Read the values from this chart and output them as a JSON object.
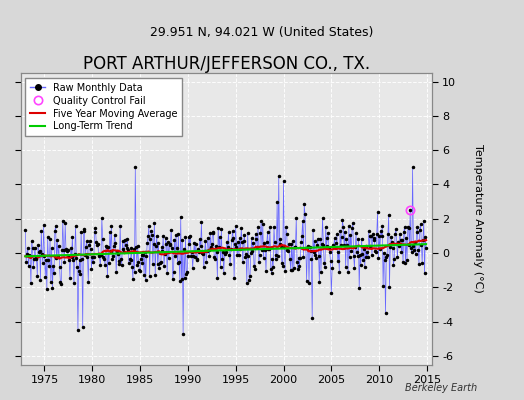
{
  "title": "PORT ARTHUR/JEFFERSON CO., TX.",
  "subtitle": "29.951 N, 94.021 W (United States)",
  "ylabel": "Temperature Anomaly (°C)",
  "watermark": "Berkeley Earth",
  "xlim": [
    1972.5,
    2015.5
  ],
  "ylim": [
    -6.5,
    10.5
  ],
  "yticks": [
    -6,
    -4,
    -2,
    0,
    2,
    4,
    6,
    8,
    10
  ],
  "xticks": [
    1975,
    1980,
    1985,
    1990,
    1995,
    2000,
    2005,
    2010,
    2015
  ],
  "bg_color": "#d8d8d8",
  "plot_bg_color": "#e8e8e8",
  "line_color": "#6666ff",
  "dot_color": "#000000",
  "ma_color": "#dd0000",
  "trend_color": "#00cc00",
  "qc_color": "#ff44ff",
  "title_fontsize": 12,
  "subtitle_fontsize": 9,
  "tick_fontsize": 8
}
